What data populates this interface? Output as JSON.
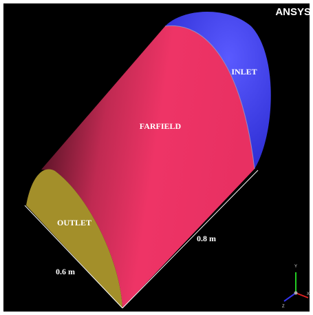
{
  "brand": "ANSYS",
  "regions": {
    "inlet": "INLET",
    "farfield": "FARFIELD",
    "outlet": "OUTLET"
  },
  "dimensions": {
    "length": "0.8 m",
    "width": "0.6 m"
  },
  "triad": {
    "y": "Y",
    "x": "X",
    "z": "Z"
  }
}
